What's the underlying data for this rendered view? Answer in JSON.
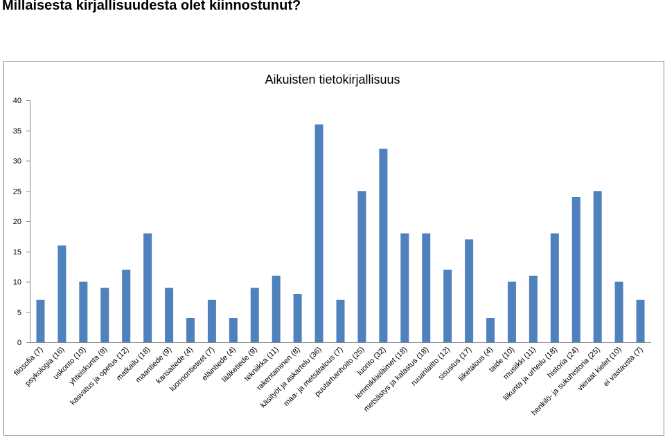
{
  "page": {
    "question": "Millaisesta kirjallisuudesta olet kiinnostunut?"
  },
  "chart_data": {
    "type": "bar",
    "title": "Aikuisten tietokirjallisuus",
    "xlabel": "",
    "ylabel": "",
    "ylim": [
      0,
      40
    ],
    "yticks": [
      0,
      5,
      10,
      15,
      20,
      25,
      30,
      35,
      40
    ],
    "grid": false,
    "legend": "none",
    "bar_color": "#4f81bd",
    "categories": [
      "filosofia (7)",
      "psykologia (16)",
      "uskonto (10)",
      "yhteiskunta (9)",
      "kasvatus ja opetus (12)",
      "matkailu (18)",
      "maantiede (9)",
      "kansatiede (4)",
      "luonnontieteet (7)",
      "eläintiede (4)",
      "lääketiede (9)",
      "tekniikka (11)",
      "rakentaminen (8)",
      "käsityöt ja askartelu (36)",
      "maa- ja metsätalous (7)",
      "puutarhanhoito (25)",
      "luonto (32)",
      "lemmikkieläimet (18)",
      "metsästys ja kalastus (18)",
      "ruuanlaitto (12)",
      "sisustus (17)",
      "liiketalous (4)",
      "taide (10)",
      "musiikki (11)",
      "liikunta ja urheilu (18)",
      "historia (24)",
      "henkilö- ja sukuhistoria (25)",
      "vieraat kielet (10)",
      "ei vastausta (7)"
    ],
    "values": [
      7,
      16,
      10,
      9,
      12,
      18,
      9,
      4,
      7,
      4,
      9,
      11,
      8,
      36,
      7,
      25,
      32,
      18,
      18,
      12,
      17,
      4,
      10,
      11,
      18,
      24,
      25,
      10,
      7
    ]
  }
}
